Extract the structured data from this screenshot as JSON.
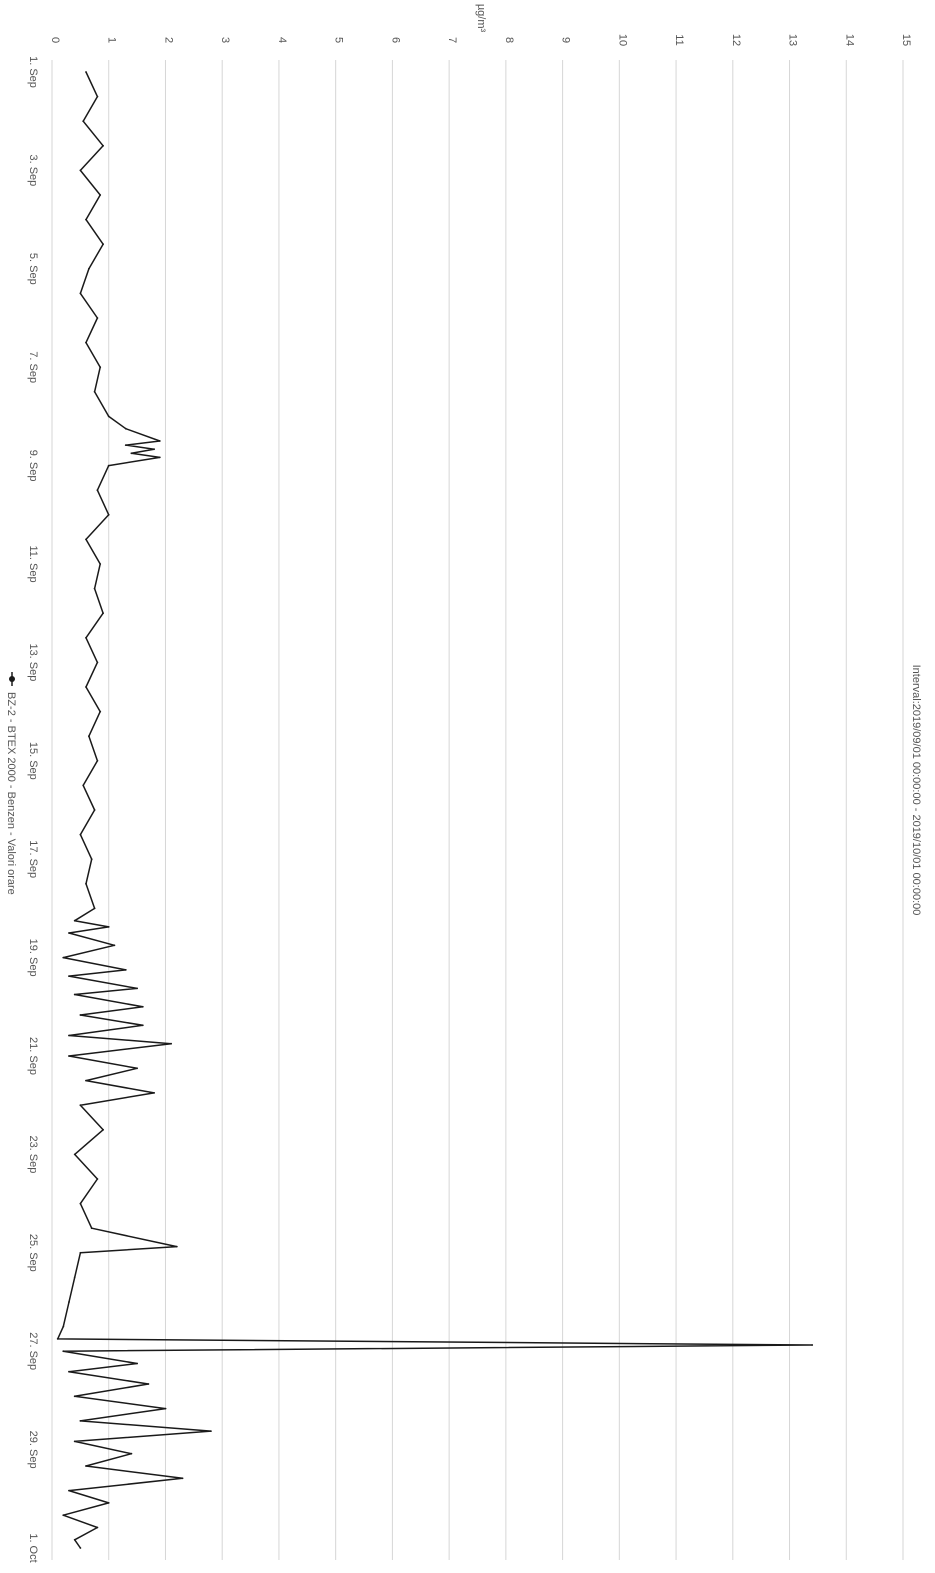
{
  "chart_data": {
    "type": "line",
    "orientation": "rotated-90-clockwise",
    "title": "Interval:2019/09/01 00:00:00 - 2019/10/01 00:00:00",
    "ylabel": "µg/m³",
    "xlabel": "",
    "ylim": [
      0,
      15
    ],
    "y_ticks": [
      "0",
      "1",
      "2",
      "3",
      "4",
      "5",
      "6",
      "7",
      "8",
      "9",
      "10",
      "11",
      "12",
      "13",
      "14",
      "15"
    ],
    "x_ticks": [
      "1. Sep",
      "3. Sep",
      "5. Sep",
      "7. Sep",
      "9. Sep",
      "11. Sep",
      "13. Sep",
      "15. Sep",
      "17. Sep",
      "19. Sep",
      "21. Sep",
      "23. Sep",
      "25. Sep",
      "27. Sep",
      "29. Sep",
      "1. Oct"
    ],
    "xlim_days": [
      0,
      30
    ],
    "grid": true,
    "legend_position": "bottom",
    "series": [
      {
        "name": "BZ-2 - BTEX 2000 - Benzen - Valori orare",
        "color": "#1a1a1a",
        "points": [
          [
            "2019-09-01 00:00",
            0.6
          ],
          [
            "2019-09-01 12:00",
            0.8
          ],
          [
            "2019-09-02 00:00",
            0.55
          ],
          [
            "2019-09-02 12:00",
            0.9
          ],
          [
            "2019-09-03 00:00",
            0.5
          ],
          [
            "2019-09-03 12:00",
            0.85
          ],
          [
            "2019-09-04 00:00",
            0.6
          ],
          [
            "2019-09-04 12:00",
            0.9
          ],
          [
            "2019-09-05 00:00",
            0.65
          ],
          [
            "2019-09-05 12:00",
            0.5
          ],
          [
            "2019-09-06 00:00",
            0.8
          ],
          [
            "2019-09-06 12:00",
            0.6
          ],
          [
            "2019-09-07 00:00",
            0.85
          ],
          [
            "2019-09-07 12:00",
            0.75
          ],
          [
            "2019-09-08 00:00",
            1.0
          ],
          [
            "2019-09-08 06:00",
            1.3
          ],
          [
            "2019-09-08 12:00",
            1.9
          ],
          [
            "2019-09-08 14:00",
            1.3
          ],
          [
            "2019-09-08 16:00",
            1.8
          ],
          [
            "2019-09-08 18:00",
            1.4
          ],
          [
            "2019-09-08 20:00",
            1.9
          ],
          [
            "2019-09-09 00:00",
            1.0
          ],
          [
            "2019-09-09 12:00",
            0.8
          ],
          [
            "2019-09-10 00:00",
            1.0
          ],
          [
            "2019-09-10 12:00",
            0.6
          ],
          [
            "2019-09-11 00:00",
            0.85
          ],
          [
            "2019-09-11 12:00",
            0.75
          ],
          [
            "2019-09-12 00:00",
            0.9
          ],
          [
            "2019-09-12 12:00",
            0.6
          ],
          [
            "2019-09-13 00:00",
            0.8
          ],
          [
            "2019-09-13 12:00",
            0.6
          ],
          [
            "2019-09-14 00:00",
            0.85
          ],
          [
            "2019-09-14 12:00",
            0.65
          ],
          [
            "2019-09-15 00:00",
            0.8
          ],
          [
            "2019-09-15 12:00",
            0.55
          ],
          [
            "2019-09-16 00:00",
            0.75
          ],
          [
            "2019-09-16 12:00",
            0.5
          ],
          [
            "2019-09-17 00:00",
            0.7
          ],
          [
            "2019-09-17 12:00",
            0.6
          ],
          [
            "2019-09-18 00:00",
            0.75
          ],
          [
            "2019-09-18 06:00",
            0.4
          ],
          [
            "2019-09-18 09:00",
            1.0
          ],
          [
            "2019-09-18 12:00",
            0.3
          ],
          [
            "2019-09-18 18:00",
            1.1
          ],
          [
            "2019-09-19 00:00",
            0.2
          ],
          [
            "2019-09-19 06:00",
            1.3
          ],
          [
            "2019-09-19 09:00",
            0.3
          ],
          [
            "2019-09-19 15:00",
            1.5
          ],
          [
            "2019-09-19 18:00",
            0.4
          ],
          [
            "2019-09-20 00:00",
            1.6
          ],
          [
            "2019-09-20 04:00",
            0.5
          ],
          [
            "2019-09-20 09:00",
            1.6
          ],
          [
            "2019-09-20 14:00",
            0.3
          ],
          [
            "2019-09-20 18:00",
            2.1
          ],
          [
            "2019-09-21 00:00",
            0.3
          ],
          [
            "2019-09-21 06:00",
            1.5
          ],
          [
            "2019-09-21 12:00",
            0.6
          ],
          [
            "2019-09-21 18:00",
            1.8
          ],
          [
            "2019-09-22 00:00",
            0.5
          ],
          [
            "2019-09-22 12:00",
            0.9
          ],
          [
            "2019-09-23 00:00",
            0.4
          ],
          [
            "2019-09-23 12:00",
            0.8
          ],
          [
            "2019-09-24 00:00",
            0.5
          ],
          [
            "2019-09-24 12:00",
            0.7
          ],
          [
            "2019-09-24 21:00",
            2.2
          ],
          [
            "2019-09-25 00:00",
            0.5
          ],
          [
            "2019-09-25 12:00",
            0.4
          ],
          [
            "2019-09-26 00:00",
            0.3
          ],
          [
            "2019-09-26 12:00",
            0.2
          ],
          [
            "2019-09-26 18:00",
            0.1
          ],
          [
            "2019-09-26 21:00",
            13.4
          ],
          [
            "2019-09-27 00:00",
            0.2
          ],
          [
            "2019-09-27 06:00",
            1.5
          ],
          [
            "2019-09-27 10:00",
            0.3
          ],
          [
            "2019-09-27 16:00",
            1.7
          ],
          [
            "2019-09-27 22:00",
            0.4
          ],
          [
            "2019-09-28 04:00",
            2.0
          ],
          [
            "2019-09-28 10:00",
            0.5
          ],
          [
            "2019-09-28 15:00",
            2.8
          ],
          [
            "2019-09-28 20:00",
            0.4
          ],
          [
            "2019-09-29 02:00",
            1.4
          ],
          [
            "2019-09-29 08:00",
            0.6
          ],
          [
            "2019-09-29 14:00",
            2.3
          ],
          [
            "2019-09-29 20:00",
            0.3
          ],
          [
            "2019-09-30 02:00",
            1.0
          ],
          [
            "2019-09-30 08:00",
            0.2
          ],
          [
            "2019-09-30 14:00",
            0.8
          ],
          [
            "2019-09-30 20:00",
            0.4
          ],
          [
            "2019-10-01 00:00",
            0.5
          ]
        ]
      }
    ]
  }
}
